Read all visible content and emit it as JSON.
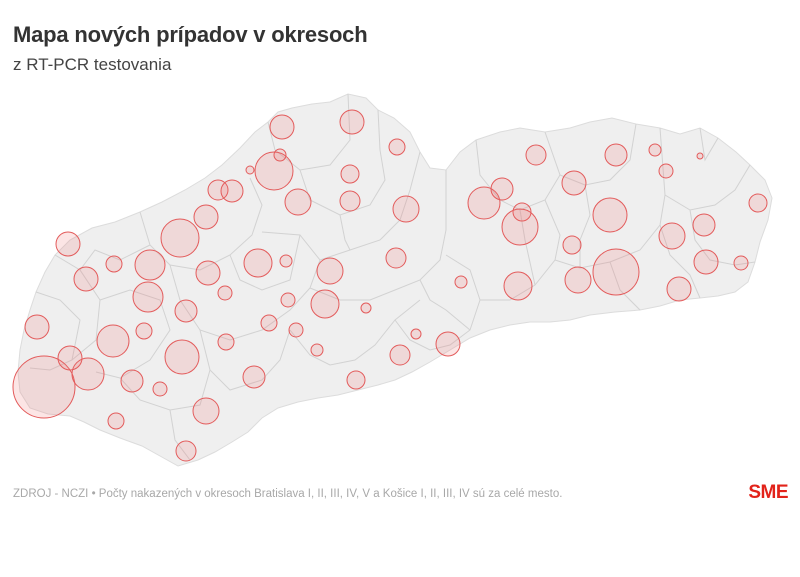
{
  "header": {
    "title": "Mapa nových prípadov v okresoch",
    "subtitle": "z RT-PCR testovania"
  },
  "footer": {
    "source": "ZDROJ - NCZI • Počty nakazených v okresoch Bratislava I, II, III, IV, V a Košice I, II, III, IV sú za celé mesto.",
    "logo": "SME"
  },
  "colors": {
    "land": "#efefef",
    "district_border": "#d2d2d2",
    "bubble_fill": "rgba(240,110,110,0.18)",
    "bubble_stroke": "#e35b5b",
    "logo": "#e2231a"
  },
  "map": {
    "region": "Slovakia districts",
    "bubble_size_level": "relative, unlabelled"
  }
}
